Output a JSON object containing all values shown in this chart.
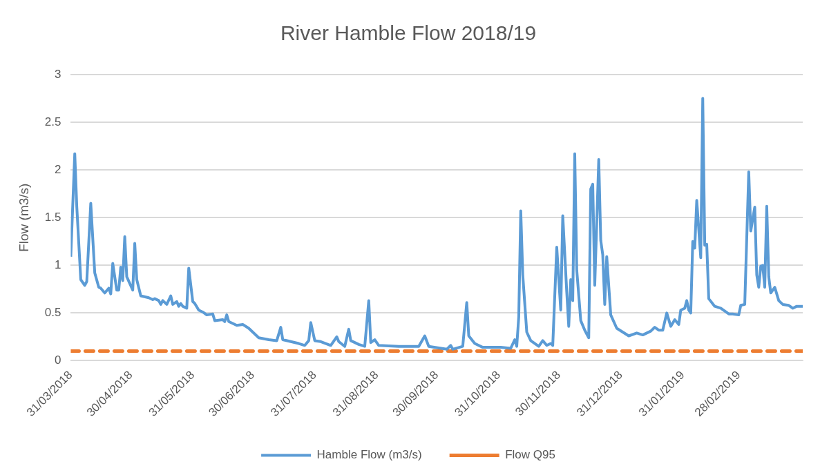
{
  "chart_data": {
    "type": "line",
    "title": "River Hamble Flow 2018/19",
    "ylabel": "Flow (m3/s)",
    "legend": "bottom",
    "grid": "y",
    "xlim": [
      "2018-03-31",
      "2019-04-01"
    ],
    "xticks": [
      {
        "value": "2018-03-31",
        "label": "31/03/2018"
      },
      {
        "value": "2018-04-30",
        "label": "30/04/2018"
      },
      {
        "value": "2018-05-31",
        "label": "31/05/2018"
      },
      {
        "value": "2018-06-30",
        "label": "30/06/2018"
      },
      {
        "value": "2018-07-31",
        "label": "31/07/2018"
      },
      {
        "value": "2018-08-31",
        "label": "31/08/2018"
      },
      {
        "value": "2018-09-30",
        "label": "30/09/2018"
      },
      {
        "value": "2018-10-31",
        "label": "31/10/2018"
      },
      {
        "value": "2018-11-30",
        "label": "30/11/2018"
      },
      {
        "value": "2018-12-31",
        "label": "31/12/2018"
      },
      {
        "value": "2019-01-31",
        "label": "31/01/2019"
      },
      {
        "value": "2019-02-28",
        "label": "28/02/2019"
      }
    ],
    "ylim": [
      0,
      3
    ],
    "yticks": [
      0,
      0.5,
      1,
      1.5,
      2,
      2.5,
      3
    ],
    "series": [
      {
        "name": "Hamble Flow (m3/s)",
        "color": "#5b9bd5",
        "line_style": "solid",
        "x": [
          "2018-03-31",
          "2018-04-02",
          "2018-04-03",
          "2018-04-05",
          "2018-04-07",
          "2018-04-08",
          "2018-04-10",
          "2018-04-12",
          "2018-04-14",
          "2018-04-15",
          "2018-04-17",
          "2018-04-19",
          "2018-04-20",
          "2018-04-21",
          "2018-04-23",
          "2018-04-24",
          "2018-04-25",
          "2018-04-26",
          "2018-04-27",
          "2018-04-28",
          "2018-05-01",
          "2018-05-02",
          "2018-05-03",
          "2018-05-05",
          "2018-05-09",
          "2018-05-11",
          "2018-05-12",
          "2018-05-14",
          "2018-05-15",
          "2018-05-16",
          "2018-05-18",
          "2018-05-20",
          "2018-05-21",
          "2018-05-23",
          "2018-05-24",
          "2018-05-25",
          "2018-05-26",
          "2018-05-28",
          "2018-05-29",
          "2018-05-31",
          "2018-06-01",
          "2018-06-03",
          "2018-06-05",
          "2018-06-07",
          "2018-06-10",
          "2018-06-11",
          "2018-06-15",
          "2018-06-16",
          "2018-06-17",
          "2018-06-18",
          "2018-06-22",
          "2018-06-25",
          "2018-06-28",
          "2018-07-03",
          "2018-07-08",
          "2018-07-12",
          "2018-07-14",
          "2018-07-15",
          "2018-07-23",
          "2018-07-26",
          "2018-07-28",
          "2018-07-29",
          "2018-07-31",
          "2018-08-03",
          "2018-08-08",
          "2018-08-11",
          "2018-08-12",
          "2018-08-15",
          "2018-08-17",
          "2018-08-18",
          "2018-08-22",
          "2018-08-25",
          "2018-08-27",
          "2018-08-28",
          "2018-08-30",
          "2018-09-01",
          "2018-09-11",
          "2018-09-21",
          "2018-09-24",
          "2018-09-26",
          "2018-10-05",
          "2018-10-07",
          "2018-10-08",
          "2018-10-13",
          "2018-10-15",
          "2018-10-16",
          "2018-10-19",
          "2018-10-23",
          "2018-11-01",
          "2018-11-06",
          "2018-11-08",
          "2018-11-09",
          "2018-11-10",
          "2018-11-11",
          "2018-11-12",
          "2018-11-14",
          "2018-11-16",
          "2018-11-20",
          "2018-11-22",
          "2018-11-24",
          "2018-11-26",
          "2018-11-27",
          "2018-11-29",
          "2018-12-01",
          "2018-12-02",
          "2018-12-04",
          "2018-12-05",
          "2018-12-06",
          "2018-12-07",
          "2018-12-08",
          "2018-12-09",
          "2018-12-11",
          "2018-12-13",
          "2018-12-15",
          "2018-12-16",
          "2018-12-17",
          "2018-12-18",
          "2018-12-20",
          "2018-12-21",
          "2018-12-22",
          "2018-12-23",
          "2018-12-24",
          "2018-12-26",
          "2018-12-29",
          "2019-01-04",
          "2019-01-08",
          "2019-01-11",
          "2019-01-15",
          "2019-01-17",
          "2019-01-19",
          "2019-01-21",
          "2019-01-23",
          "2019-01-25",
          "2019-01-27",
          "2019-01-29",
          "2019-01-30",
          "2019-02-01",
          "2019-02-02",
          "2019-02-03",
          "2019-02-04",
          "2019-02-05",
          "2019-02-06",
          "2019-02-07",
          "2019-02-09",
          "2019-02-10",
          "2019-02-11",
          "2019-02-12",
          "2019-02-13",
          "2019-02-16",
          "2019-02-19",
          "2019-02-23",
          "2019-02-25",
          "2019-02-28",
          "2019-03-01",
          "2019-03-03",
          "2019-03-05",
          "2019-03-06",
          "2019-03-08",
          "2019-03-09",
          "2019-03-10",
          "2019-03-11",
          "2019-03-12",
          "2019-03-13",
          "2019-03-14",
          "2019-03-15",
          "2019-03-16",
          "2019-03-18",
          "2019-03-20",
          "2019-03-22",
          "2019-03-25",
          "2019-03-27",
          "2019-03-29",
          "2019-04-01"
        ],
        "values": [
          1.09,
          2.17,
          1.62,
          0.85,
          0.79,
          0.83,
          1.65,
          0.92,
          0.77,
          0.76,
          0.71,
          0.76,
          0.7,
          1.02,
          0.74,
          0.74,
          0.98,
          0.84,
          1.3,
          0.88,
          0.74,
          1.23,
          0.85,
          0.68,
          0.66,
          0.64,
          0.65,
          0.63,
          0.59,
          0.63,
          0.59,
          0.68,
          0.59,
          0.62,
          0.57,
          0.6,
          0.57,
          0.55,
          0.97,
          0.62,
          0.6,
          0.53,
          0.51,
          0.48,
          0.49,
          0.42,
          0.43,
          0.41,
          0.48,
          0.41,
          0.37,
          0.38,
          0.34,
          0.24,
          0.22,
          0.21,
          0.35,
          0.22,
          0.18,
          0.16,
          0.21,
          0.4,
          0.21,
          0.2,
          0.16,
          0.25,
          0.2,
          0.15,
          0.33,
          0.21,
          0.17,
          0.15,
          0.63,
          0.19,
          0.22,
          0.16,
          0.15,
          0.15,
          0.26,
          0.15,
          0.12,
          0.16,
          0.12,
          0.15,
          0.61,
          0.26,
          0.18,
          0.14,
          0.14,
          0.13,
          0.22,
          0.15,
          0.46,
          1.57,
          0.9,
          0.3,
          0.21,
          0.15,
          0.21,
          0.16,
          0.18,
          0.16,
          1.19,
          0.53,
          1.52,
          0.72,
          0.36,
          0.85,
          0.63,
          2.17,
          0.95,
          0.42,
          0.32,
          0.24,
          1.8,
          1.85,
          0.79,
          2.11,
          1.26,
          1.11,
          0.59,
          1.09,
          0.48,
          0.34,
          0.26,
          0.29,
          0.27,
          0.31,
          0.35,
          0.32,
          0.32,
          0.5,
          0.36,
          0.43,
          0.38,
          0.53,
          0.55,
          0.63,
          0.53,
          0.5,
          1.25,
          1.18,
          1.68,
          1.08,
          2.75,
          1.21,
          1.22,
          0.65,
          0.57,
          0.55,
          0.49,
          0.49,
          0.48,
          0.58,
          0.59,
          1.98,
          1.36,
          1.61,
          0.9,
          0.77,
          0.99,
          1.0,
          0.77,
          1.62,
          0.88,
          0.71,
          0.77,
          0.63,
          0.59,
          0.58,
          0.55,
          0.57,
          0.57
        ]
      },
      {
        "name": "Flow Q95",
        "color": "#ed7d31",
        "line_style": "dashed",
        "x": [
          "2018-03-31",
          "2019-04-01"
        ],
        "values": [
          0.1,
          0.1
        ]
      }
    ]
  }
}
